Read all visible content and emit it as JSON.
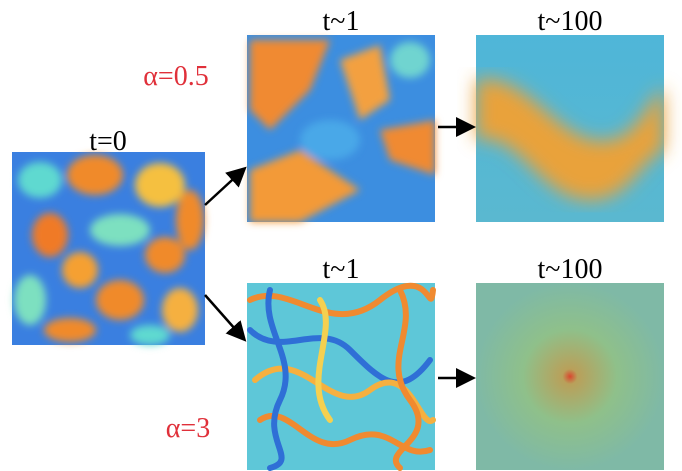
{
  "initial": {
    "label": "t=0"
  },
  "rows": [
    {
      "alpha": "α=0.5",
      "panels": [
        {
          "label": "t~1"
        },
        {
          "label": "t~100"
        }
      ]
    },
    {
      "alpha": "α=3",
      "panels": [
        {
          "label": "t~1"
        },
        {
          "label": "t~100"
        }
      ]
    }
  ]
}
